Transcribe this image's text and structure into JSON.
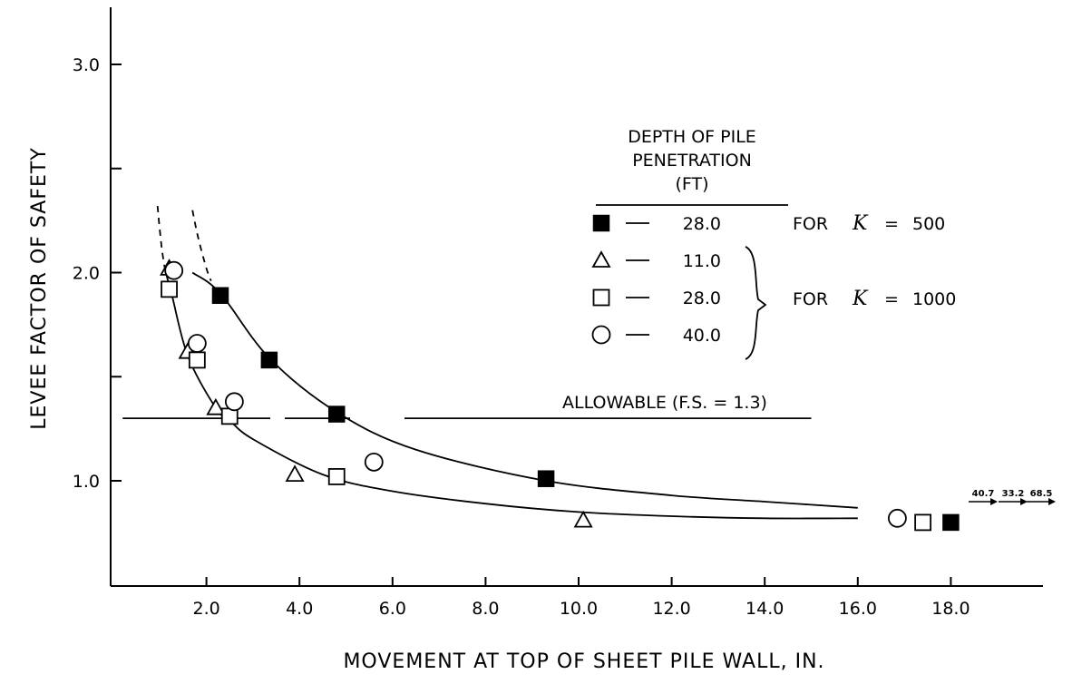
{
  "chart_data": {
    "type": "scatter",
    "title": "",
    "xlabel": "MOVEMENT AT TOP OF SHEET PILE WALL, IN.",
    "ylabel": "LEVEE FACTOR OF SAFETY",
    "xlim": [
      0.0,
      18.0
    ],
    "ylim": [
      0.5,
      3.2
    ],
    "x_ticks": [
      {
        "value": 2.0,
        "label": "2.0"
      },
      {
        "value": 4.0,
        "label": "4.0"
      },
      {
        "value": 6.0,
        "label": "6.0"
      },
      {
        "value": 8.0,
        "label": "8.0"
      },
      {
        "value": 10.0,
        "label": "10.0"
      },
      {
        "value": 12.0,
        "label": "12.0"
      },
      {
        "value": 14.0,
        "label": "14.0"
      },
      {
        "value": 16.0,
        "label": "16.0"
      },
      {
        "value": 18.0,
        "label": "18.0"
      }
    ],
    "y_ticks": [
      {
        "value": 1.0,
        "label": "1.0"
      },
      {
        "value": 1.5,
        "label": ""
      },
      {
        "value": 2.0,
        "label": "2.0"
      },
      {
        "value": 2.5,
        "label": ""
      },
      {
        "value": 3.0,
        "label": "3.0"
      }
    ],
    "legend": {
      "title_lines": [
        "DEPTH OF PILE",
        "PENETRATION",
        "(FT)"
      ],
      "position": "top-right",
      "entries": [
        {
          "marker": "filled-square",
          "depth": "28.0"
        },
        {
          "marker": "triangle",
          "depth": "11.0"
        },
        {
          "marker": "square",
          "depth": "28.0"
        },
        {
          "marker": "circle",
          "depth": "40.0"
        }
      ],
      "group_labels": [
        {
          "prefix": "FOR",
          "symbol": "K",
          "equals": "=",
          "value": "500"
        },
        {
          "prefix": "FOR",
          "symbol": "K",
          "equals": "=",
          "value": "1000"
        }
      ]
    },
    "series": [
      {
        "marker": "filled-square",
        "points": [
          [
            2.3,
            1.89
          ],
          [
            3.35,
            1.58
          ],
          [
            4.8,
            1.32
          ],
          [
            9.3,
            1.01
          ],
          [
            18.0,
            0.8
          ]
        ]
      },
      {
        "marker": "triangle",
        "points": [
          [
            1.2,
            2.02
          ],
          [
            1.6,
            1.62
          ],
          [
            2.2,
            1.35
          ],
          [
            3.9,
            1.03
          ],
          [
            10.1,
            0.81
          ]
        ]
      },
      {
        "marker": "square",
        "points": [
          [
            1.2,
            1.92
          ],
          [
            1.8,
            1.58
          ],
          [
            2.5,
            1.31
          ],
          [
            4.8,
            1.02
          ],
          [
            17.4,
            0.8
          ]
        ]
      },
      {
        "marker": "circle",
        "points": [
          [
            1.3,
            2.01
          ],
          [
            1.8,
            1.66
          ],
          [
            2.6,
            1.38
          ],
          [
            5.6,
            1.09
          ],
          [
            16.85,
            0.82
          ]
        ]
      }
    ],
    "curves": [
      {
        "style": "solid",
        "points": [
          [
            1.7,
            2.0
          ],
          [
            2.3,
            1.9
          ],
          [
            3.35,
            1.59
          ],
          [
            4.8,
            1.33
          ],
          [
            6.5,
            1.15
          ],
          [
            9.3,
            1.0
          ],
          [
            12.0,
            0.93
          ],
          [
            14.0,
            0.9
          ],
          [
            16.0,
            0.87
          ]
        ]
      },
      {
        "style": "solid",
        "points": [
          [
            1.1,
            2.02
          ],
          [
            1.25,
            1.9
          ],
          [
            1.6,
            1.6
          ],
          [
            2.2,
            1.35
          ],
          [
            2.5,
            1.29
          ],
          [
            3.0,
            1.2
          ],
          [
            4.5,
            1.03
          ],
          [
            6.0,
            0.95
          ],
          [
            8.0,
            0.89
          ],
          [
            10.0,
            0.85
          ],
          [
            12.0,
            0.83
          ],
          [
            14.0,
            0.82
          ],
          [
            16.0,
            0.82
          ]
        ]
      },
      {
        "style": "dashed",
        "points": [
          [
            1.7,
            2.3
          ],
          [
            1.82,
            2.17
          ],
          [
            2.0,
            2.02
          ],
          [
            2.1,
            1.96
          ]
        ]
      },
      {
        "style": "dashed",
        "points": [
          [
            0.95,
            2.32
          ],
          [
            1.0,
            2.2
          ],
          [
            1.05,
            2.1
          ],
          [
            1.12,
            2.0
          ]
        ]
      }
    ],
    "allowable": {
      "label": "ALLOWABLE (F.S. = 1.3)",
      "y": 1.3,
      "x_start": 0.2,
      "x_end": 15.0
    },
    "offscale_labels": [
      "40.7",
      "33.2",
      "68.5"
    ]
  }
}
